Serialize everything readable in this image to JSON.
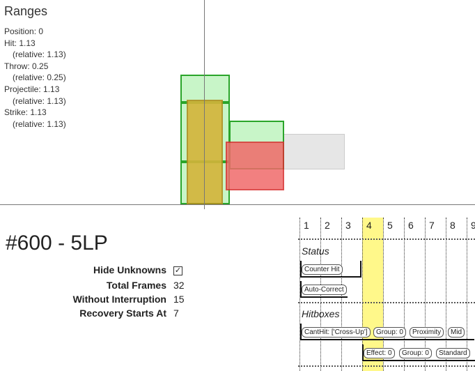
{
  "ranges": {
    "title": "Ranges",
    "rows": [
      {
        "text": "Position: 0",
        "indent": false
      },
      {
        "text": "Hit: 1.13",
        "indent": false
      },
      {
        "text": "(relative: 1.13)",
        "indent": true
      },
      {
        "text": "Throw: 0.25",
        "indent": false
      },
      {
        "text": "(relative: 0.25)",
        "indent": true
      },
      {
        "text": "Projectile: 1.13",
        "indent": false
      },
      {
        "text": "(relative: 1.13)",
        "indent": true
      },
      {
        "text": "Strike: 1.13",
        "indent": false
      },
      {
        "text": "(relative: 1.13)",
        "indent": true
      }
    ]
  },
  "colors": {
    "hurtbox_fill": "#c8f5c8",
    "hurtbox_border": "#2aa52a",
    "hitbox_fill": "#f06a6a",
    "hitbox_border": "#d83030",
    "pushbox_fill": "#d4b43a",
    "pushbox_border": "#b09020",
    "range_fill": "#e6e6e6",
    "range_border": "#cccccc",
    "highlight": "#fff88a"
  },
  "move": {
    "title": "#600 - 5LP",
    "info": [
      {
        "label": "Hide Unknowns",
        "value": "",
        "checkbox": true,
        "checked": "✓"
      },
      {
        "label": "Total Frames",
        "value": "32"
      },
      {
        "label": "Without Interruption",
        "value": "15"
      },
      {
        "label": "Recovery Starts At",
        "value": "7"
      }
    ]
  },
  "timeline": {
    "frames": [
      "1",
      "2",
      "3",
      "4",
      "5",
      "6",
      "7",
      "8",
      "9"
    ],
    "highlighted_frame": "4",
    "sections": {
      "status": "Status",
      "hitboxes": "Hitboxes"
    },
    "status_chips": [
      "Counter Hit",
      "Auto-Correct"
    ],
    "hitbox_row1": [
      "CantHit: ['Cross-Up']",
      "Group: 0",
      "Proximity",
      "Mid"
    ],
    "hitbox_row2": [
      "Effect: 0",
      "Group: 0",
      "Standard"
    ]
  }
}
